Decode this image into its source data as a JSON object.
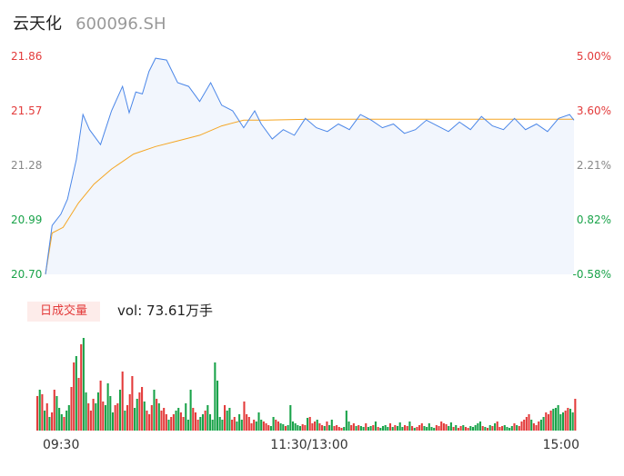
{
  "header": {
    "name": "云天化",
    "code": "600096.SH"
  },
  "volume_panel": {
    "tag": "日成交量",
    "vol_label": "vol: 73.61万手"
  },
  "colors": {
    "price_line": "#4a86e8",
    "avg_line": "#f5a623",
    "up": "#e33b3b",
    "down": "#1aa34a",
    "neutral_label": "#888888",
    "area_fill": "#f2f6fd"
  },
  "chart_data": [
    {
      "type": "line",
      "title": "",
      "y_left_ticks": [
        "21.86",
        "21.57",
        "21.28",
        "20.99",
        "20.70"
      ],
      "y_right_ticks": [
        "5.00%",
        "3.60%",
        "2.21%",
        "0.82%",
        "-0.58%"
      ],
      "ylim": [
        20.7,
        21.86
      ],
      "x_ticks": [
        "09:30",
        "11:30/13:00",
        "15:00"
      ],
      "series": [
        {
          "key": "price",
          "x": [
            0,
            3,
            7,
            10,
            14,
            17,
            20,
            25,
            30,
            35,
            38,
            41,
            44,
            47,
            50,
            55,
            60,
            65,
            70,
            75,
            80,
            85,
            90,
            95,
            98,
            103,
            108,
            113,
            118,
            123,
            128,
            133,
            138,
            143,
            148,
            153,
            158,
            163,
            168,
            173,
            178,
            183,
            188,
            193,
            198,
            203,
            208,
            213,
            218,
            223,
            228,
            233,
            238,
            240
          ],
          "values": [
            20.7,
            20.96,
            21.02,
            21.1,
            21.31,
            21.55,
            21.47,
            21.39,
            21.57,
            21.7,
            21.56,
            21.67,
            21.66,
            21.78,
            21.85,
            21.84,
            21.72,
            21.7,
            21.62,
            21.72,
            21.6,
            21.57,
            21.48,
            21.57,
            21.5,
            21.42,
            21.47,
            21.44,
            21.53,
            21.48,
            21.46,
            21.5,
            21.47,
            21.55,
            21.52,
            21.48,
            21.5,
            21.45,
            21.47,
            21.52,
            21.49,
            21.46,
            21.51,
            21.47,
            21.54,
            21.49,
            21.47,
            21.53,
            21.47,
            21.5,
            21.46,
            21.53,
            21.55,
            21.52
          ]
        },
        {
          "key": "average",
          "x": [
            0,
            3,
            8,
            15,
            22,
            30,
            40,
            50,
            60,
            70,
            80,
            90,
            100,
            120,
            140,
            160,
            180,
            200,
            220,
            240
          ],
          "values": [
            20.7,
            20.92,
            20.95,
            21.08,
            21.18,
            21.26,
            21.34,
            21.38,
            21.41,
            21.44,
            21.49,
            21.52,
            21.52,
            21.525,
            21.525,
            21.525,
            21.525,
            21.525,
            21.525,
            21.525
          ]
        }
      ]
    },
    {
      "type": "bar",
      "title": "",
      "ylim": [
        0,
        110
      ],
      "volumes": [
        38,
        45,
        40,
        22,
        30,
        15,
        20,
        45,
        38,
        25,
        18,
        15,
        22,
        28,
        48,
        75,
        82,
        58,
        95,
        102,
        42,
        30,
        22,
        35,
        30,
        42,
        55,
        32,
        28,
        52,
        38,
        20,
        28,
        30,
        45,
        65,
        22,
        28,
        40,
        60,
        25,
        35,
        42,
        48,
        32,
        22,
        18,
        28,
        45,
        35,
        30,
        22,
        25,
        18,
        12,
        15,
        18,
        22,
        25,
        20,
        15,
        30,
        12,
        45,
        25,
        20,
        12,
        15,
        18,
        22,
        28,
        18,
        12,
        75,
        55,
        15,
        12,
        28,
        22,
        25,
        12,
        15,
        10,
        18,
        12,
        32,
        18,
        15,
        8,
        12,
        10,
        20,
        12,
        10,
        8,
        6,
        5,
        15,
        12,
        10,
        8,
        7,
        5,
        6,
        28,
        10,
        8,
        6,
        5,
        7,
        6,
        14,
        15,
        8,
        10,
        12,
        8,
        6,
        5,
        10,
        6,
        12,
        5,
        6,
        4,
        3,
        4,
        22,
        10,
        6,
        8,
        5,
        6,
        5,
        4,
        8,
        4,
        5,
        6,
        10,
        4,
        3,
        5,
        6,
        4,
        8,
        4,
        6,
        5,
        9,
        4,
        6,
        5,
        10,
        5,
        3,
        4,
        6,
        8,
        5,
        4,
        8,
        4,
        3,
        6,
        5,
        10,
        8,
        7,
        5,
        9,
        4,
        6,
        3,
        5,
        6,
        4,
        3,
        5,
        4,
        6,
        8,
        10,
        5,
        4,
        3,
        6,
        5,
        8,
        10,
        4,
        5,
        6,
        4,
        3,
        5,
        8,
        6,
        5,
        10,
        12,
        15,
        18,
        12,
        8,
        6,
        10,
        12,
        15,
        20,
        18,
        22,
        24,
        25,
        28,
        18,
        20,
        22,
        25,
        24,
        20,
        35
      ],
      "directions": "UDUDUDUUDDDUDDUUDUUDDUUUDDUUDDDDUUDUDUUUDDUUDUUUDUDUUUDUUDDUUDDDUUUDDUDDDDDDDUDDUUDDDUUUUUDDDUUUDDUUDDUDDDDDDUUDUUUDUUDUDDUUUUDDDUUDUDDUDDUDUDDDDUDUDDDUUDUDUUUDDDDDUUUUUDDUDUUDUUDDDDDUDUDUDUUUDDDDUDUUUUUDUUUDDUUUDDDDDUUDDUUUDUUUUUDUUUU"
    }
  ]
}
